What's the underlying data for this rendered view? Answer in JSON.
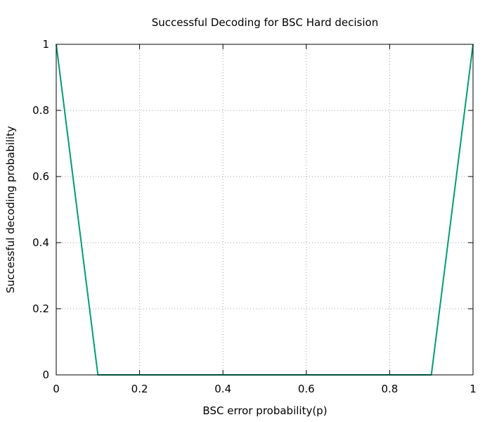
{
  "chart_data": {
    "type": "line",
    "title": "Successful Decoding for BSC Hard decision",
    "xlabel": "BSC error probability(p)",
    "ylabel": "Successful decoding probability",
    "xlim": [
      0,
      1
    ],
    "ylim": [
      0,
      1
    ],
    "x_ticks": [
      "0",
      "0.2",
      "0.4",
      "0.6",
      "0.8",
      "1"
    ],
    "y_ticks": [
      "0",
      "0.2",
      "0.4",
      "0.6",
      "0.8",
      "1"
    ],
    "grid": true,
    "legend": "none",
    "series": [
      {
        "color": "#009e73",
        "x": [
          0,
          0.1,
          0.9,
          1
        ],
        "y": [
          1,
          0,
          0,
          1
        ]
      }
    ]
  }
}
